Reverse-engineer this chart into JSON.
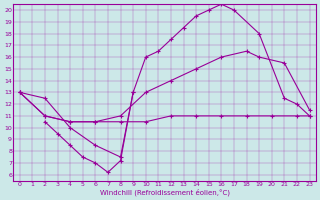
{
  "title": "",
  "xlabel": "Windchill (Refroidissement éolien,°C)",
  "ylabel": "",
  "bg_color": "#cce8e8",
  "line_color": "#990099",
  "xlim": [
    -0.5,
    23.5
  ],
  "ylim": [
    5.5,
    20.5
  ],
  "xticks": [
    0,
    1,
    2,
    3,
    4,
    5,
    6,
    7,
    8,
    9,
    10,
    11,
    12,
    13,
    14,
    15,
    16,
    17,
    18,
    19,
    20,
    21,
    22,
    23
  ],
  "yticks": [
    6,
    7,
    8,
    9,
    10,
    11,
    12,
    13,
    14,
    15,
    16,
    17,
    18,
    19,
    20
  ],
  "line1_x": [
    0,
    2,
    4,
    6,
    8,
    9,
    10,
    11,
    12,
    13,
    14,
    15,
    16,
    17,
    19,
    21,
    22,
    23
  ],
  "line1_y": [
    13,
    12.5,
    10,
    8.5,
    7.5,
    13,
    16,
    16.5,
    17.5,
    18.5,
    19.5,
    20,
    20.5,
    20,
    18,
    12.5,
    12,
    11
  ],
  "line2_x": [
    0,
    2,
    4,
    6,
    8,
    10,
    12,
    14,
    16,
    18,
    19,
    21,
    23
  ],
  "line2_y": [
    13,
    11,
    10.5,
    10.5,
    11,
    13,
    14,
    15,
    16,
    16.5,
    16,
    15.5,
    11.5
  ],
  "line3_x": [
    0,
    2,
    4,
    6,
    8,
    10,
    12,
    14,
    16,
    18,
    20,
    22,
    23
  ],
  "line3_y": [
    13,
    11,
    10.5,
    10.5,
    10.5,
    10.5,
    11,
    11,
    11,
    11,
    11,
    11,
    11
  ],
  "line4_x": [
    2,
    3,
    4,
    5,
    6,
    7,
    8,
    9
  ],
  "line4_y": [
    10.5,
    9.5,
    8.5,
    7.5,
    7.0,
    6.2,
    7.2,
    13
  ]
}
